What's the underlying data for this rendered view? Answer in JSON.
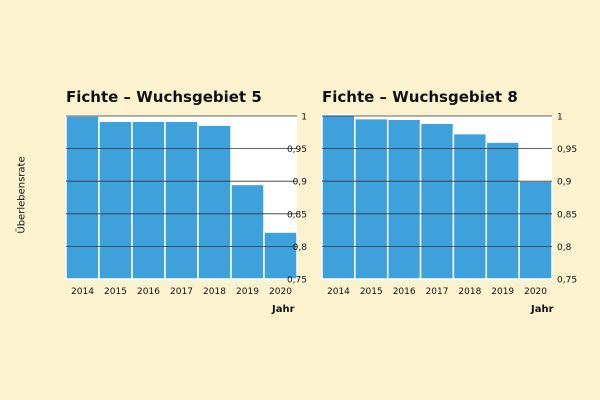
{
  "chart_data": [
    {
      "type": "bar",
      "title": "Fichte – Wuchsgebiet 5",
      "ylabel": "Überlebensrate",
      "xlabel": "Jahr",
      "categories": [
        "2014",
        "2015",
        "2016",
        "2017",
        "2018",
        "2019",
        "2020"
      ],
      "values": [
        1.0,
        0.992,
        0.992,
        0.992,
        0.986,
        0.895,
        0.822
      ],
      "ylim": [
        0.75,
        1.0
      ],
      "yticks": [
        "0,75",
        "0,8",
        "0,85",
        "0,9",
        "0,95",
        "1"
      ],
      "grid": true,
      "color": "#3fa1dc"
    },
    {
      "type": "bar",
      "title": "Fichte – Wuchsgebiet 8",
      "ylabel": "",
      "xlabel": "Jahr",
      "categories": [
        "2014",
        "2015",
        "2016",
        "2017",
        "2018",
        "2019",
        "2020"
      ],
      "values": [
        1.002,
        0.996,
        0.995,
        0.989,
        0.973,
        0.96,
        0.9
      ],
      "ylim": [
        0.75,
        1.0
      ],
      "yticks": [
        "0,75",
        "0,8",
        "0,85",
        "0,9",
        "0,95",
        "1"
      ],
      "grid": true,
      "color": "#3fa1dc"
    }
  ]
}
